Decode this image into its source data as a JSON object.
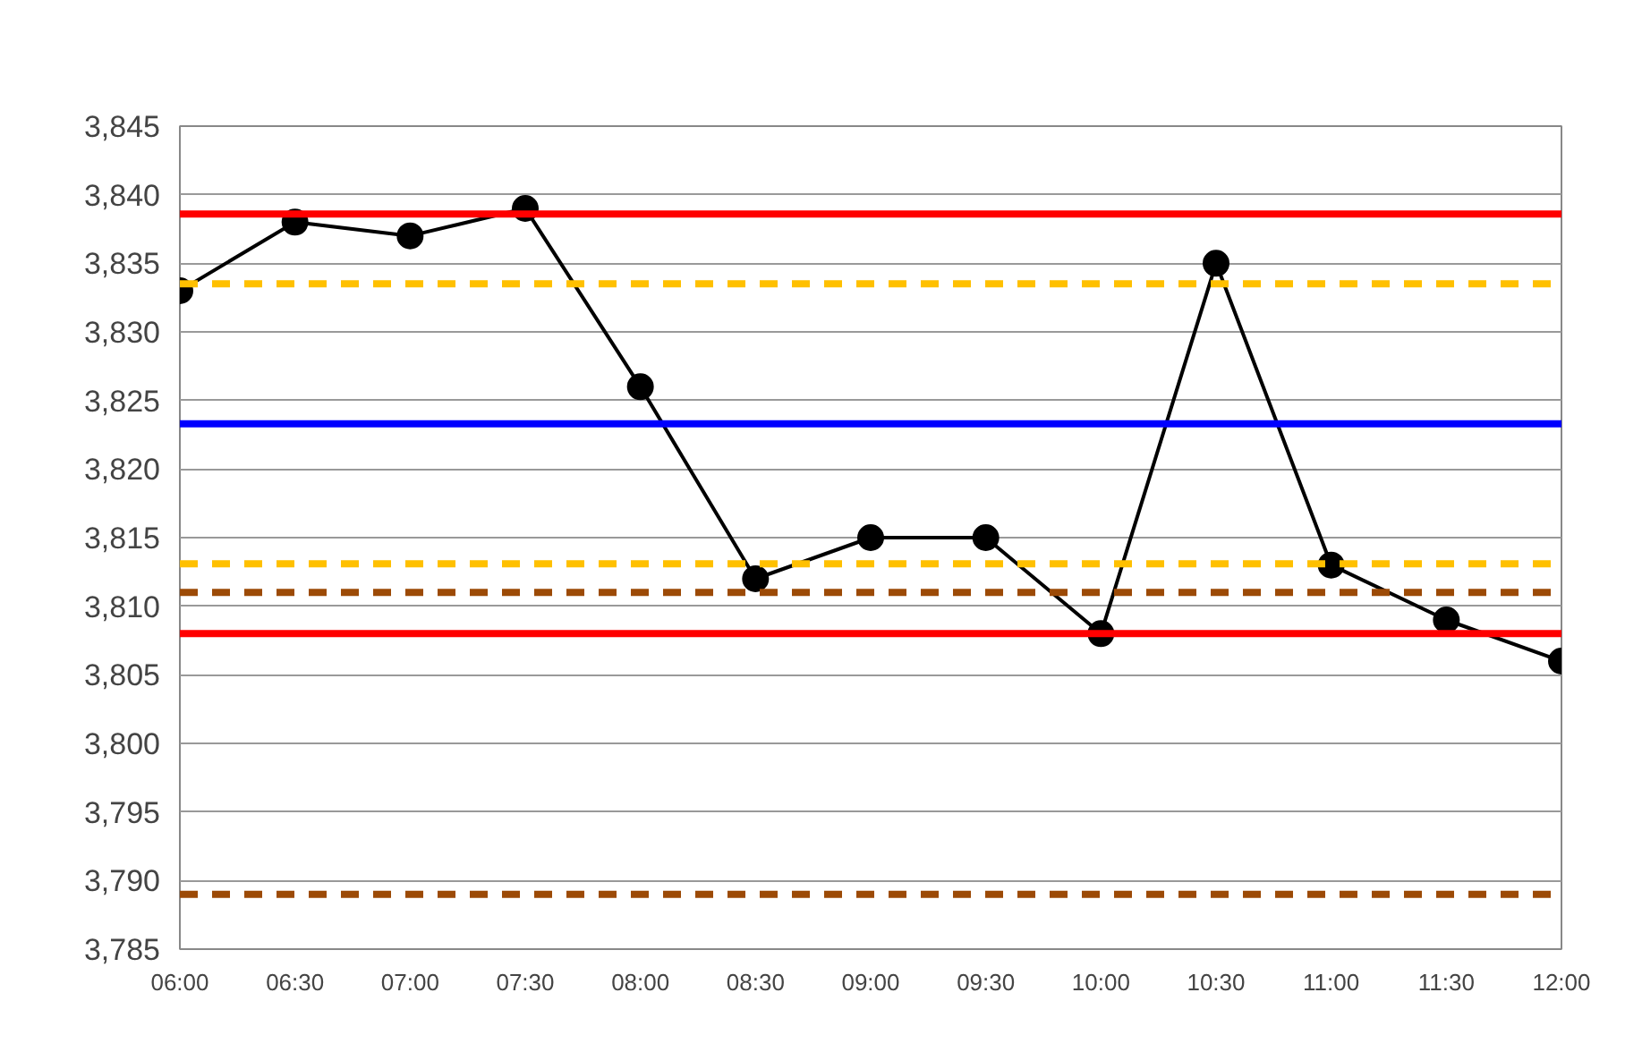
{
  "chart_data": {
    "type": "line",
    "x": [
      6,
      6.5,
      7,
      7.5,
      8,
      8.5,
      9,
      9.5,
      10,
      10.5,
      11,
      11.5,
      12
    ],
    "series": [
      {
        "color": "#000000",
        "values": [
          3833,
          3838,
          3837,
          3839,
          3826,
          3812,
          3815,
          3815,
          3808,
          3835,
          3813,
          3809,
          3806
        ]
      }
    ],
    "marker": "circle",
    "grid": "y",
    "xlim": [
      6,
      12
    ],
    "ylim": [
      3785,
      3845
    ],
    "xticks": [
      {
        "value": 6,
        "label": "06:00"
      },
      {
        "value": 6.5,
        "label": "06:30"
      },
      {
        "value": 7,
        "label": "07:00"
      },
      {
        "value": 7.5,
        "label": "07:30"
      },
      {
        "value": 8,
        "label": "08:00"
      },
      {
        "value": 8.5,
        "label": "08:30"
      },
      {
        "value": 9,
        "label": "09:00"
      },
      {
        "value": 9.5,
        "label": "09:30"
      },
      {
        "value": 10,
        "label": "10:00"
      },
      {
        "value": 10.5,
        "label": "10:30"
      },
      {
        "value": 11,
        "label": "11:00"
      },
      {
        "value": 11.5,
        "label": "11:30"
      },
      {
        "value": 12,
        "label": "12:00"
      }
    ],
    "yticks": [
      {
        "value": 3785,
        "label": "3,785"
      },
      {
        "value": 3790,
        "label": "3,790"
      },
      {
        "value": 3795,
        "label": "3,795"
      },
      {
        "value": 3800,
        "label": "3,800"
      },
      {
        "value": 3805,
        "label": "3,805"
      },
      {
        "value": 3810,
        "label": "3,810"
      },
      {
        "value": 3815,
        "label": "3,815"
      },
      {
        "value": 3820,
        "label": "3,820"
      },
      {
        "value": 3825,
        "label": "3,825"
      },
      {
        "value": 3830,
        "label": "3,830"
      },
      {
        "value": 3835,
        "label": "3,835"
      },
      {
        "value": 3840,
        "label": "3,840"
      },
      {
        "value": 3845,
        "label": "3,845"
      }
    ],
    "ref_lines": [
      {
        "axis": "y",
        "value": 3838.6,
        "color": "#ff0000",
        "line_style": "solid"
      },
      {
        "axis": "y",
        "value": 3808,
        "color": "#ff0000",
        "line_style": "solid"
      },
      {
        "axis": "y",
        "value": 3823.3,
        "color": "#0000ff",
        "line_style": "solid"
      },
      {
        "axis": "y",
        "value": 3833.5,
        "color": "#ffc000",
        "line_style": "dashed"
      },
      {
        "axis": "y",
        "value": 3813.1,
        "color": "#ffc000",
        "line_style": "dashed"
      },
      {
        "axis": "y",
        "value": 3811,
        "color": "#9c4a06",
        "line_style": "dashed"
      },
      {
        "axis": "y",
        "value": 3789,
        "color": "#9c4a06",
        "line_style": "dashed"
      }
    ]
  }
}
